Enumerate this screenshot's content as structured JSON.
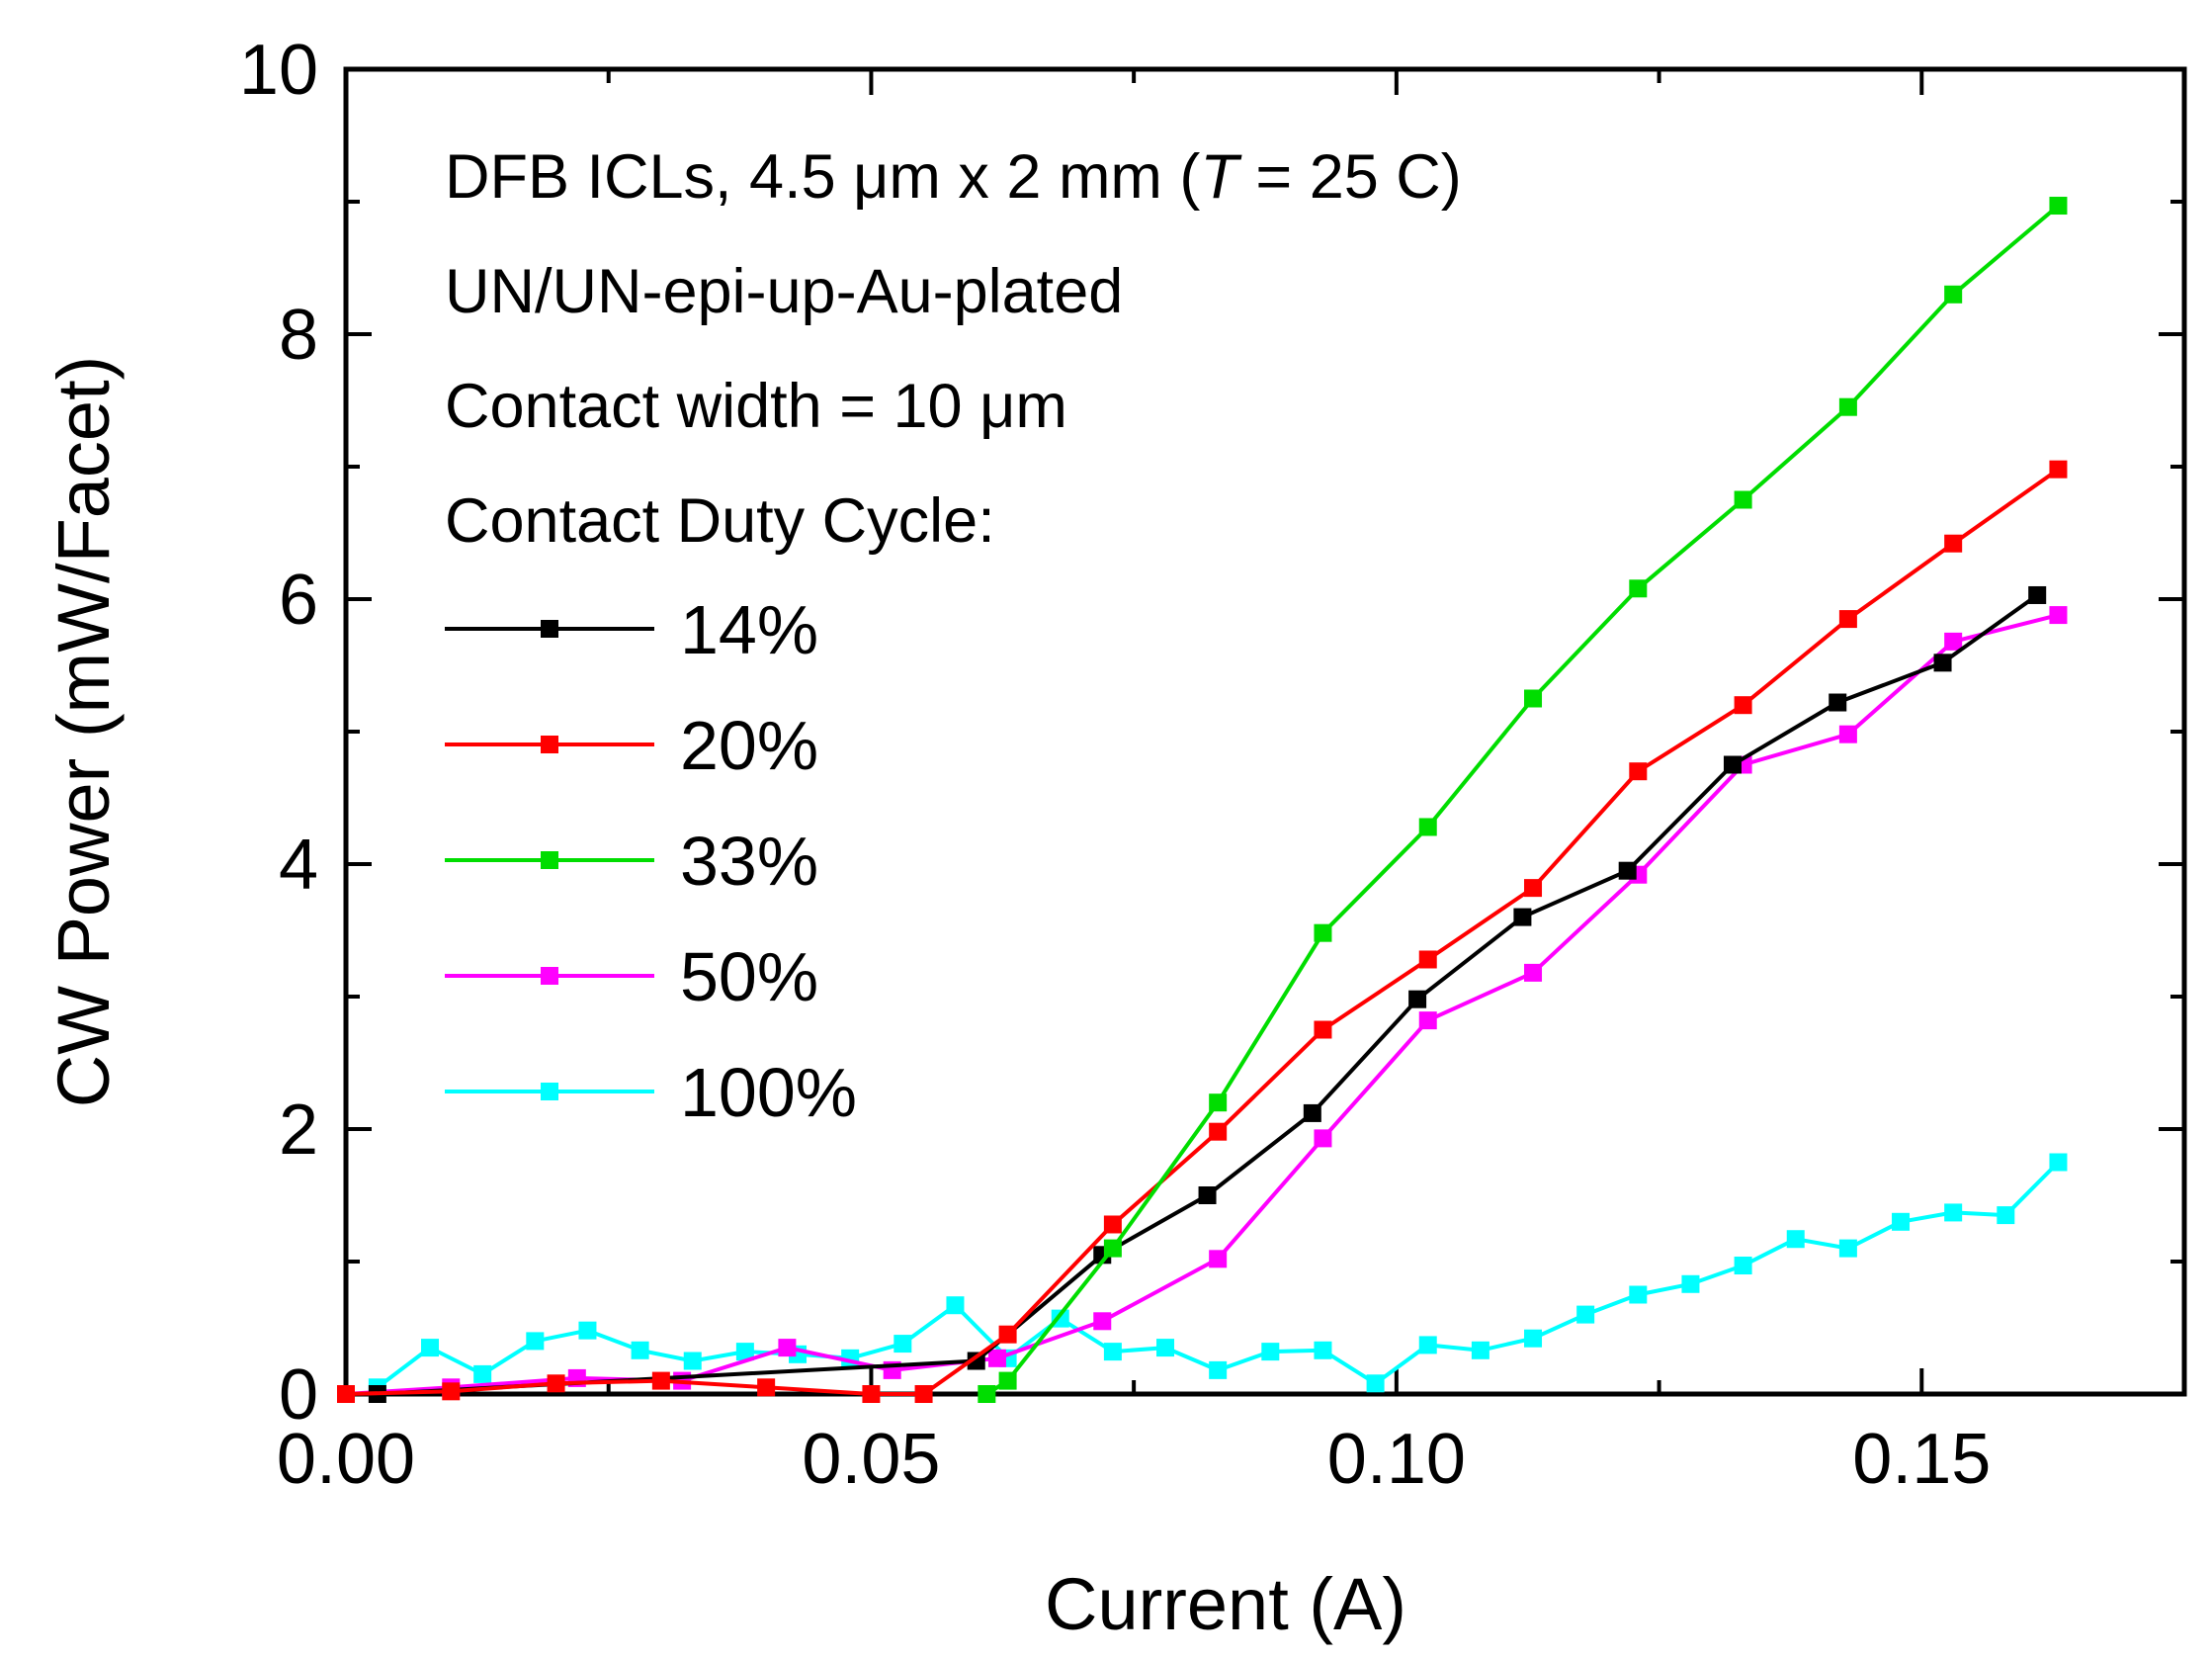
{
  "chart_data": {
    "type": "line",
    "xlabel": "Current (A)",
    "ylabel": "CW Power (mW/Facet)",
    "xlim": [
      0.0,
      0.175
    ],
    "ylim": [
      0,
      10
    ],
    "x_ticks": [
      "0.00",
      "0.05",
      "0.10",
      "0.15"
    ],
    "x_tick_values": [
      0.0,
      0.05,
      0.1,
      0.15
    ],
    "y_ticks": [
      "0",
      "2",
      "4",
      "6",
      "8",
      "10"
    ],
    "y_tick_values": [
      0,
      2,
      4,
      6,
      8,
      10
    ],
    "grid": false,
    "legend_placement": "top-left",
    "annotations": [
      "DFB ICLs, 4.5 μm x 2 mm (",
      "UN/UN-epi-up-Au-plated",
      "Contact width = 10 μm",
      "Contact Duty Cycle:"
    ],
    "annotation_italic": "T",
    "annotation_tail": " = 25 C)",
    "series": [
      {
        "name": "14%",
        "color": "#000000",
        "x": [
          0.003,
          0.06,
          0.072,
          0.082,
          0.092,
          0.102,
          0.112,
          0.122,
          0.132,
          0.142,
          0.152,
          0.161
        ],
        "y": [
          0.0,
          0.25,
          1.05,
          1.5,
          2.12,
          2.98,
          3.6,
          3.95,
          4.75,
          5.22,
          5.52,
          6.03
        ]
      },
      {
        "name": "20%",
        "color": "#ff0000",
        "x": [
          0.0,
          0.01,
          0.02,
          0.03,
          0.04,
          0.05,
          0.055,
          0.063,
          0.073,
          0.083,
          0.093,
          0.103,
          0.113,
          0.123,
          0.133,
          0.143,
          0.153,
          0.163
        ],
        "y": [
          0.0,
          0.02,
          0.08,
          0.1,
          0.05,
          0.0,
          0.0,
          0.45,
          1.28,
          1.98,
          2.75,
          3.28,
          3.82,
          4.7,
          5.2,
          5.85,
          6.42,
          6.98
        ]
      },
      {
        "name": "33%",
        "color": "#00dd00",
        "x": [
          0.061,
          0.063,
          0.073,
          0.083,
          0.093,
          0.103,
          0.113,
          0.123,
          0.133,
          0.143,
          0.153,
          0.163
        ],
        "y": [
          0.0,
          0.1,
          1.1,
          2.2,
          3.48,
          4.28,
          5.25,
          6.08,
          6.75,
          7.45,
          8.3,
          8.97
        ]
      },
      {
        "name": "50%",
        "color": "#ff00ff",
        "x": [
          0.0,
          0.01,
          0.022,
          0.032,
          0.042,
          0.052,
          0.062,
          0.072,
          0.083,
          0.093,
          0.103,
          0.113,
          0.123,
          0.133,
          0.143,
          0.153,
          0.163
        ],
        "y": [
          0.0,
          0.05,
          0.12,
          0.1,
          0.35,
          0.18,
          0.27,
          0.55,
          1.02,
          1.93,
          2.82,
          3.18,
          3.92,
          4.75,
          4.98,
          5.68,
          5.88
        ]
      },
      {
        "name": "100%",
        "color": "#00ffff",
        "x": [
          0.003,
          0.008,
          0.013,
          0.018,
          0.023,
          0.028,
          0.033,
          0.038,
          0.043,
          0.048,
          0.053,
          0.058,
          0.063,
          0.068,
          0.073,
          0.078,
          0.083,
          0.088,
          0.093,
          0.098,
          0.103,
          0.108,
          0.113,
          0.118,
          0.123,
          0.128,
          0.133,
          0.138,
          0.143,
          0.148,
          0.153,
          0.158,
          0.163
        ],
        "y": [
          0.05,
          0.35,
          0.15,
          0.4,
          0.48,
          0.33,
          0.25,
          0.32,
          0.3,
          0.27,
          0.38,
          0.67,
          0.27,
          0.57,
          0.32,
          0.35,
          0.18,
          0.32,
          0.33,
          0.08,
          0.37,
          0.33,
          0.42,
          0.6,
          0.75,
          0.83,
          0.97,
          1.17,
          1.1,
          1.3,
          1.37,
          1.35,
          1.75
        ]
      }
    ]
  }
}
